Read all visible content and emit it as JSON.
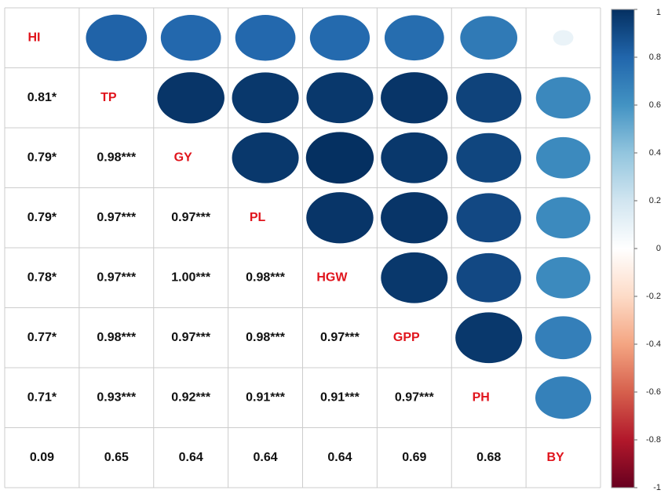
{
  "chart_data": {
    "type": "corrplot",
    "variables": [
      "HI",
      "TP",
      "GY",
      "PL",
      "HGW",
      "GPP",
      "PH",
      "BY"
    ],
    "values": [
      [],
      [
        0.81
      ],
      [
        0.79,
        0.98
      ],
      [
        0.79,
        0.97,
        0.97
      ],
      [
        0.78,
        0.97,
        1.0,
        0.98
      ],
      [
        0.77,
        0.98,
        0.97,
        0.98,
        0.97
      ],
      [
        0.71,
        0.93,
        0.92,
        0.91,
        0.91,
        0.97
      ],
      [
        0.09,
        0.65,
        0.64,
        0.64,
        0.64,
        0.69,
        0.68
      ]
    ],
    "value_labels": [
      [],
      [
        "0.81*"
      ],
      [
        "0.79*",
        "0.98***"
      ],
      [
        "0.79*",
        "0.97***",
        "0.97***"
      ],
      [
        "0.78*",
        "0.97***",
        "1.00***",
        "0.98***"
      ],
      [
        "0.77*",
        "0.98***",
        "0.97***",
        "0.98***",
        "0.97***"
      ],
      [
        "0.71*",
        "0.93***",
        "0.92***",
        "0.91***",
        "0.91***",
        "0.97***"
      ]
    ],
    "colorscale": [
      "#67001F",
      "#B2182B",
      "#D6604D",
      "#F4A582",
      "#FDDBC7",
      "#FFFFFF",
      "#D1E5F0",
      "#92C5DE",
      "#4393C3",
      "#2166AC",
      "#053061"
    ],
    "label_color": "#e0141c",
    "colorbar_lim": [
      -1,
      1
    ],
    "colorbar_ticks": [
      1,
      0.8,
      0.6,
      0.4,
      0.2,
      0,
      -0.2,
      -0.4,
      -0.6,
      -0.8,
      -1
    ]
  }
}
